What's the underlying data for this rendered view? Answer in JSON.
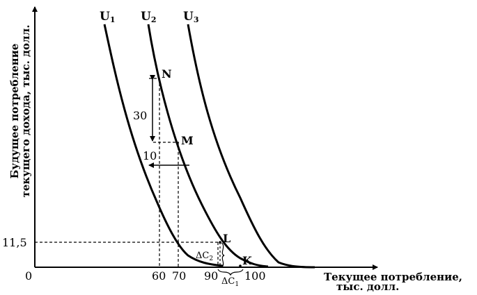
{
  "y_axis_title": [
    "Будущее потребление",
    "текущего дохода, тыс. долл."
  ],
  "x_axis_title": [
    "Текущее потребление,",
    "тыс. долл."
  ],
  "origin_label": "0",
  "y_tick_label": "11,5",
  "x_tick_labels": [
    "60",
    "70",
    "90",
    "100"
  ],
  "curve_labels": [
    "U",
    "U",
    "U"
  ],
  "curve_subscripts": [
    "1",
    "2",
    "3"
  ],
  "point_labels": {
    "N": "N",
    "M": "M",
    "L": "L",
    "K": "K"
  },
  "arrow_labels": {
    "vertical": "30",
    "horizontal": "10"
  },
  "delta_labels": {
    "c2": "ΔC",
    "c2_sub": "2",
    "c1": "ΔC",
    "c1_sub": "1"
  }
}
